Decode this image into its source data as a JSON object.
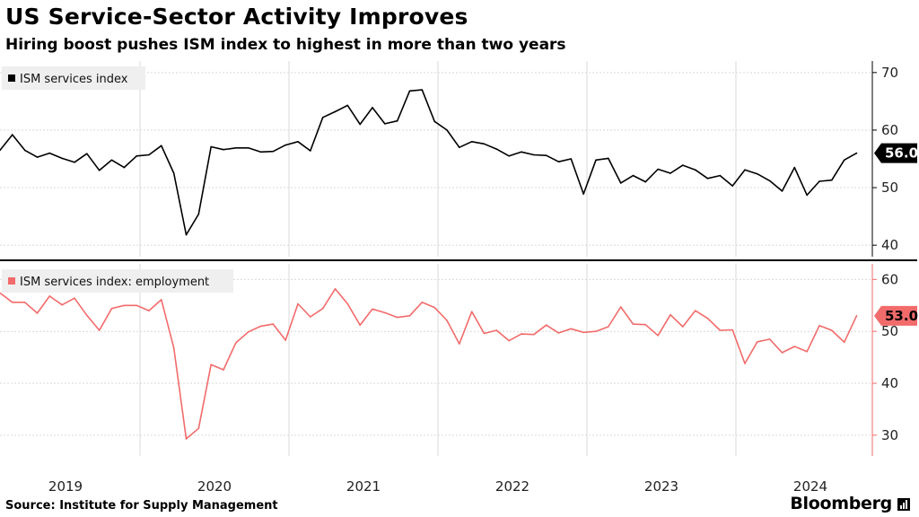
{
  "header": {
    "title": "US Service-Sector Activity Improves",
    "subtitle": "Hiring boost pushes ISM index to highest in more than two years"
  },
  "footer": {
    "source": "Source: Institute for Supply Management",
    "brand": "Bloomberg",
    "brand_icon": "bar-chart-icon"
  },
  "colors": {
    "series_1": "#000000",
    "series_2": "#f26b6b",
    "grid": "#d9d9d9",
    "panel_divider": "#000000"
  },
  "chart_data": [
    {
      "type": "line",
      "panel": "top",
      "x_start": "2019-01",
      "x_labels": [
        "2019",
        "2020",
        "2021",
        "2022",
        "2023",
        "2024"
      ],
      "series": [
        {
          "name": "ISM services index",
          "values": [
            56.5,
            59.2,
            56.5,
            55.3,
            56.0,
            55.1,
            54.4,
            55.9,
            53.0,
            54.8,
            53.5,
            55.5,
            55.7,
            57.3,
            52.5,
            41.8,
            45.4,
            57.1,
            56.6,
            56.9,
            56.9,
            56.2,
            56.3,
            57.4,
            58.0,
            56.4,
            62.2,
            63.2,
            64.3,
            61.0,
            63.9,
            61.1,
            61.6,
            66.8,
            67.0,
            61.5,
            60.0,
            57.0,
            58.0,
            57.6,
            56.7,
            55.5,
            56.2,
            55.7,
            55.6,
            54.5,
            55.0,
            48.9,
            54.8,
            55.1,
            50.8,
            52.1,
            51.0,
            53.2,
            52.5,
            53.9,
            53.1,
            51.6,
            52.1,
            50.3,
            53.1,
            52.4,
            51.2,
            49.4,
            53.5,
            48.7,
            51.1,
            51.3,
            54.8,
            56.0
          ]
        }
      ],
      "ylim": [
        38,
        72
      ],
      "yticks": [
        40,
        50,
        60,
        70
      ],
      "last_value_label": "56.0",
      "grid": true,
      "legend": "top-left"
    },
    {
      "type": "line",
      "panel": "bottom",
      "x_start": "2019-01",
      "x_labels": [
        "2019",
        "2020",
        "2021",
        "2022",
        "2023",
        "2024"
      ],
      "series": [
        {
          "name": "ISM services index: employment",
          "values": [
            57.4,
            55.6,
            55.6,
            53.5,
            56.8,
            55.1,
            56.4,
            53.1,
            50.2,
            54.4,
            55.0,
            55.0,
            54.0,
            56.1,
            46.8,
            29.3,
            31.3,
            43.6,
            42.6,
            47.8,
            49.9,
            51.0,
            51.4,
            48.3,
            55.3,
            52.8,
            54.4,
            58.2,
            55.3,
            51.2,
            54.3,
            53.6,
            52.7,
            53.0,
            55.6,
            54.6,
            52.1,
            47.6,
            53.8,
            49.6,
            50.2,
            48.2,
            49.5,
            49.4,
            51.2,
            49.7,
            50.5,
            49.8,
            50.0,
            50.9,
            54.7,
            51.4,
            51.3,
            49.2,
            53.2,
            50.9,
            54.0,
            52.5,
            50.2,
            50.3,
            43.8,
            48.0,
            48.5,
            45.9,
            47.1,
            46.1,
            51.1,
            50.2,
            47.9,
            53.0
          ]
        }
      ],
      "ylim": [
        26,
        63
      ],
      "yticks": [
        30,
        40,
        50,
        60
      ],
      "last_value_label": "53.0",
      "grid": true,
      "legend": "top-left"
    }
  ]
}
